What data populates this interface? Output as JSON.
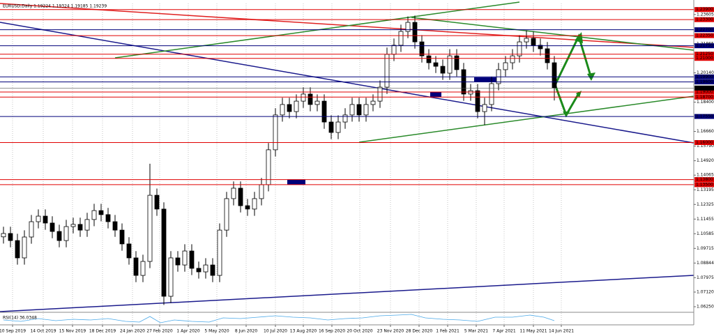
{
  "chart_data": {
    "type": "candlestick",
    "title": "EURUSD,Daily 1.19224 1.19324 1.19185 1.19239",
    "indicator_label": "RSI(14) 36.0348",
    "current_price": 1.19239,
    "open": [
      1.104,
      1.106,
      1.1018,
      1.0915,
      1.1039,
      1.113,
      1.1163,
      1.1122,
      1.1072,
      1.1018,
      1.1101,
      1.1114,
      1.108,
      1.1143,
      1.1196,
      1.1172,
      1.113,
      1.108,
      1.0998,
      1.0915,
      1.0811,
      1.0894,
      1.1287,
      1.1205,
      1.0687,
      1.0915,
      1.0873,
      1.0956,
      1.0853,
      1.0832,
      1.0873,
      1.0811,
      1.108,
      1.1267,
      1.1329,
      1.1225,
      1.1205,
      1.1267,
      1.135,
      1.1557,
      1.1764,
      1.1826,
      1.1784,
      1.1846,
      1.1888,
      1.1826,
      1.1846,
      1.1722,
      1.166,
      1.1722,
      1.1764,
      1.1826,
      1.1764,
      1.1826,
      1.1846,
      1.1929,
      1.2124,
      1.2178,
      1.226,
      1.2314,
      1.2198,
      1.2115,
      1.2074,
      1.2053,
      1.2012,
      1.2115,
      1.2033,
      1.1888,
      1.1908,
      1.1784,
      1.1826,
      1.195,
      1.2033,
      1.2074,
      1.2115,
      1.2198,
      1.2219,
      1.2178,
      1.2157,
      1.2074
    ],
    "high": [
      1.11,
      1.11,
      1.1058,
      1.1079,
      1.117,
      1.1203,
      1.1203,
      1.1162,
      1.1112,
      1.1141,
      1.1154,
      1.1154,
      1.1183,
      1.1236,
      1.1236,
      1.1212,
      1.117,
      1.112,
      1.1038,
      1.0955,
      1.0934,
      1.1474,
      1.1327,
      1.1245,
      1.0955,
      1.0955,
      1.0996,
      1.0996,
      1.0893,
      1.0913,
      1.0913,
      1.112,
      1.1307,
      1.1369,
      1.1369,
      1.1265,
      1.1307,
      1.139,
      1.1597,
      1.1804,
      1.1866,
      1.1866,
      1.1886,
      1.1928,
      1.1928,
      1.1886,
      1.1886,
      1.1762,
      1.1762,
      1.1804,
      1.1866,
      1.1866,
      1.1866,
      1.1886,
      1.1969,
      1.2164,
      1.2218,
      1.23,
      1.2349,
      1.2354,
      1.2238,
      1.2155,
      1.2114,
      1.2093,
      1.2155,
      1.2155,
      1.2073,
      1.1948,
      1.1948,
      1.1866,
      1.199,
      1.2073,
      1.2114,
      1.2155,
      1.2238,
      1.2266,
      1.2259,
      1.2218,
      1.2197,
      1.2114
    ],
    "low": [
      1.1,
      1.0978,
      1.0875,
      1.0875,
      1.0999,
      1.109,
      1.1082,
      1.1032,
      1.0978,
      1.0978,
      1.1061,
      1.104,
      1.104,
      1.1103,
      1.1132,
      1.109,
      1.104,
      1.0958,
      1.0875,
      1.0771,
      1.0771,
      1.0854,
      1.1165,
      1.0636,
      1.0647,
      1.0833,
      1.0833,
      1.0813,
      1.0792,
      1.0792,
      1.0771,
      1.0771,
      1.104,
      1.1227,
      1.1185,
      1.1165,
      1.1165,
      1.1227,
      1.131,
      1.1517,
      1.1724,
      1.1744,
      1.1744,
      1.1806,
      1.1786,
      1.1786,
      1.1682,
      1.162,
      1.162,
      1.1682,
      1.1724,
      1.1724,
      1.1724,
      1.1786,
      1.1806,
      1.1889,
      1.2084,
      1.2138,
      1.222,
      1.2158,
      1.2075,
      1.2034,
      1.2013,
      1.1972,
      1.1972,
      1.1993,
      1.1848,
      1.1848,
      1.1744,
      1.1704,
      1.1786,
      1.191,
      1.1993,
      1.2034,
      1.2075,
      1.2158,
      1.2138,
      1.2117,
      1.2034,
      1.185
    ],
    "close": [
      1.106,
      1.1018,
      1.0915,
      1.1039,
      1.113,
      1.1163,
      1.1122,
      1.1072,
      1.1018,
      1.1101,
      1.1114,
      1.108,
      1.1143,
      1.1196,
      1.1172,
      1.113,
      1.108,
      1.0998,
      1.0915,
      1.0811,
      1.0894,
      1.1287,
      1.1205,
      1.0687,
      1.0915,
      1.0873,
      1.0956,
      1.0853,
      1.0832,
      1.0873,
      1.0811,
      1.108,
      1.1267,
      1.1329,
      1.1225,
      1.1205,
      1.1267,
      1.135,
      1.1557,
      1.1764,
      1.1826,
      1.1784,
      1.1846,
      1.1888,
      1.1826,
      1.1846,
      1.1722,
      1.166,
      1.1722,
      1.1764,
      1.1826,
      1.1764,
      1.1826,
      1.1846,
      1.1929,
      1.2124,
      1.2178,
      1.226,
      1.2314,
      1.2198,
      1.2115,
      1.2074,
      1.2053,
      1.2012,
      1.2115,
      1.2033,
      1.1888,
      1.1908,
      1.1784,
      1.1826,
      1.195,
      1.2033,
      1.2074,
      1.2115,
      1.2198,
      1.2219,
      1.2178,
      1.2157,
      1.2074,
      1.1924
    ],
    "up_color": "#ffffff",
    "down_color": "#000000",
    "xlim": [
      -0.5,
      99
    ],
    "xticks": [
      {
        "value": 1.3,
        "label": "10 Sep 2019"
      },
      {
        "value": 5.7,
        "label": "14 Oct 2019"
      },
      {
        "value": 9.9,
        "label": "15 Nov 2019"
      },
      {
        "value": 14.2,
        "label": "18 Dec 2019"
      },
      {
        "value": 18.5,
        "label": "24 Jan 2020"
      },
      {
        "value": 22.4,
        "label": "27 Feb 2020"
      },
      {
        "value": 26.5,
        "label": "1 Apr 2020"
      },
      {
        "value": 30.6,
        "label": "5 May 2020"
      },
      {
        "value": 34.8,
        "label": "8 Jun 2020"
      },
      {
        "value": 39,
        "label": "10 Jul 2020"
      },
      {
        "value": 43,
        "label": "13 Aug 2020"
      },
      {
        "value": 47.1,
        "label": "16 Sep 2020"
      },
      {
        "value": 51.1,
        "label": "20 Oct 2020"
      },
      {
        "value": 55.5,
        "label": "23 Nov 2020"
      },
      {
        "value": 59.6,
        "label": "28 Dec 2020"
      },
      {
        "value": 63.7,
        "label": "1 Feb 2021"
      },
      {
        "value": 67.8,
        "label": "5 Mar 2021"
      },
      {
        "value": 71.8,
        "label": "7 Apr 2021"
      },
      {
        "value": 76,
        "label": "11 May 2021"
      },
      {
        "value": 80,
        "label": "14 Jun 2021"
      }
    ],
    "ylim": [
      1.0596,
      1.2426
    ],
    "yticks": [
      1.23605,
      1.21865,
      {
        "value": 1.2014,
        "label": "1.20140"
      },
      {
        "value": 1.184,
        "label": "1.18400"
      },
      {
        "value": 1.1666,
        "label": "1.16660"
      },
      {
        "value": 1.1579,
        "label": "1.15790"
      },
      {
        "value": 1.1492,
        "label": "1.14920"
      },
      1.14065,
      1.13195,
      1.12325,
      1.11455,
      1.10585,
      1.09715,
      1.08844,
      1.07975,
      {
        "value": 1.0712,
        "label": "1.07120"
      },
      {
        "value": 1.0625,
        "label": "1.06250"
      }
    ],
    "grid": true,
    "levels": [
      {
        "value": 1.239,
        "label": "1.23900",
        "color": "#e00000"
      },
      {
        "value": 1.233,
        "label": "1.23300",
        "color": "#e00000"
      },
      {
        "value": 1.227,
        "label": "1.22700",
        "color": "#00007a"
      },
      {
        "value": 1.2235,
        "label": "1.22350",
        "color": "#e00000"
      },
      {
        "value": 1.2175,
        "label": "1.21750",
        "color": "#00007a"
      },
      {
        "value": 1.2125,
        "label": "1.21250",
        "color": "#e00000"
      },
      {
        "value": 1.21,
        "label": "1.21000",
        "color": "#e00000"
      },
      {
        "value": 1.199,
        "label": "1.19900",
        "color": "#00007a"
      },
      {
        "value": 1.196,
        "label": "1.19600",
        "color": "#00007a"
      },
      {
        "value": 1.19,
        "label": "1.19000",
        "color": "#e00000"
      },
      {
        "value": 1.187,
        "label": "1.18700",
        "color": "#e00000"
      },
      {
        "value": 1.1755,
        "label": "1.17550",
        "color": "#00007a"
      },
      {
        "value": 1.16,
        "label": "1.16000",
        "color": "#e00000"
      },
      {
        "value": 1.138,
        "label": "1.13800",
        "color": "#e00000"
      },
      {
        "value": 1.135,
        "label": "1.13500",
        "color": "#e00000"
      }
    ]
  }
}
